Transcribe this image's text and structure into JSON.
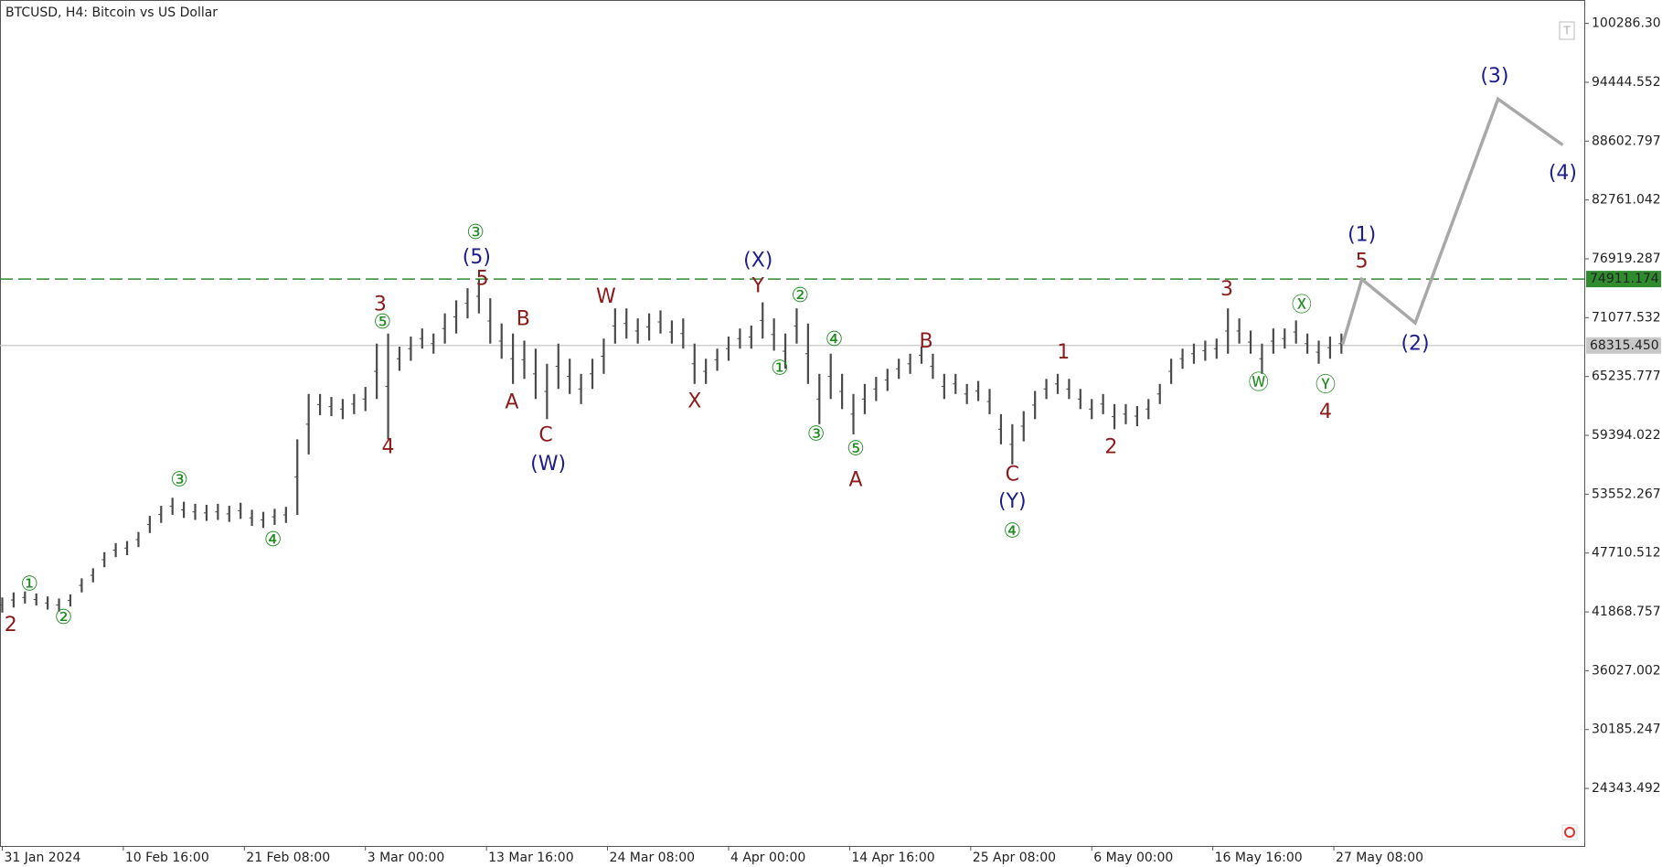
{
  "chart_data": {
    "type": "hilo",
    "title": "BTCUSD, H4:  Bitcoin vs US Dollar",
    "color": "#4a4a4a",
    "x": [
      0,
      1,
      2,
      3,
      4,
      5,
      6,
      7,
      8,
      9,
      10,
      11,
      12,
      13,
      14,
      15,
      16,
      17,
      18,
      19,
      20,
      21,
      22,
      23,
      24,
      25,
      26,
      27,
      28,
      29,
      30,
      31,
      32,
      33,
      34,
      35,
      36,
      37,
      38,
      39,
      40,
      41,
      42,
      43,
      44,
      45,
      46,
      47,
      48,
      49,
      50,
      51,
      52,
      53,
      54,
      55,
      56,
      57,
      58,
      59,
      60,
      61,
      62,
      63,
      64,
      65,
      66,
      67,
      68,
      69,
      70,
      71,
      72,
      73,
      74,
      75,
      76,
      77,
      78,
      79,
      80,
      81,
      82,
      83,
      84,
      85,
      86,
      87,
      88,
      89,
      90,
      91,
      92,
      93,
      94,
      95,
      96,
      97,
      98,
      99,
      100,
      101,
      102,
      103,
      104,
      105,
      106,
      107,
      108,
      109,
      110,
      111,
      112,
      113,
      114,
      115,
      116,
      117,
      118
    ],
    "high": [
      43300,
      43800,
      43900,
      43700,
      43400,
      43200,
      43600,
      45200,
      46200,
      47800,
      48700,
      48900,
      49800,
      51400,
      52400,
      53200,
      52800,
      52600,
      52500,
      52600,
      52400,
      52700,
      52000,
      51800,
      52100,
      52300,
      59000,
      63500,
      63500,
      63200,
      63000,
      63500,
      64200,
      68500,
      69500,
      68200,
      69200,
      70000,
      69500,
      71500,
      72800,
      74000,
      74900,
      73000,
      70500,
      69500,
      68800,
      68000,
      66500,
      68500,
      67000,
      65500,
      67000,
      69000,
      72000,
      72000,
      71000,
      71500,
      71800,
      70800,
      71000,
      68500,
      67000,
      68000,
      69200,
      70000,
      70300,
      72600,
      71000,
      69500,
      72000,
      70500,
      65500,
      67500,
      65500,
      63500,
      64500,
      65200,
      66000,
      67000,
      67500,
      68200,
      67500,
      65500,
      65500,
      64500,
      64800,
      64000,
      61500,
      60500,
      61800,
      63800,
      65000,
      65500,
      65000,
      64000,
      63000,
      63500,
      62500,
      62500,
      62300,
      63000,
      64500,
      67000,
      68000,
      68500,
      68800,
      69000,
      72000,
      71000,
      69800,
      68500,
      70000,
      70000,
      70800,
      69500,
      68800,
      69200,
      69500
    ],
    "low": [
      41800,
      42300,
      42700,
      42500,
      42100,
      41900,
      42400,
      43800,
      44800,
      46300,
      47300,
      47500,
      48300,
      49700,
      50700,
      51500,
      51200,
      51000,
      50900,
      51000,
      50800,
      51100,
      50400,
      50200,
      50500,
      50700,
      51500,
      57500,
      61400,
      61300,
      61000,
      61500,
      61800,
      63000,
      59000,
      65800,
      66800,
      68000,
      67500,
      68500,
      69500,
      71000,
      71500,
      68500,
      67000,
      64500,
      65000,
      63000,
      61000,
      64000,
      63500,
      62500,
      64000,
      65500,
      68500,
      69000,
      68500,
      68800,
      69500,
      68500,
      68000,
      64500,
      64500,
      65800,
      66800,
      68000,
      68000,
      69000,
      67800,
      66000,
      68500,
      64500,
      60500,
      63000,
      62000,
      59500,
      61500,
      62800,
      63800,
      65000,
      65500,
      66500,
      65000,
      63000,
      63500,
      62500,
      62800,
      61500,
      58500,
      56500,
      58800,
      61000,
      63000,
      63500,
      63000,
      62000,
      61000,
      61500,
      60000,
      60500,
      60300,
      61000,
      62500,
      64500,
      66000,
      66500,
      66800,
      67000,
      67500,
      68500,
      67500,
      65500,
      67500,
      68000,
      68500,
      67500,
      66500,
      67000,
      67500
    ],
    "xlim": [
      -0.2,
      139.4
    ],
    "ylim": [
      18630,
      102614
    ],
    "yticks": [
      24343.492,
      30185.247,
      36027.002,
      41868.757,
      47710.512,
      53552.267,
      59394.022,
      65235.777,
      71077.532,
      76919.287,
      82761.042,
      88602.797,
      94444.552,
      100286.307
    ],
    "xticks": [
      {
        "value": 0,
        "label": "31 Jan 2024"
      },
      {
        "value": 10.667,
        "label": "10 Feb 16:00"
      },
      {
        "value": 21.333,
        "label": "21 Feb 08:00"
      },
      {
        "value": 32,
        "label": "3 Mar 00:00"
      },
      {
        "value": 42.667,
        "label": "13 Mar 16:00"
      },
      {
        "value": 53.333,
        "label": "24 Mar 08:00"
      },
      {
        "value": 64,
        "label": "4 Apr 00:00"
      },
      {
        "value": 74.667,
        "label": "14 Apr 16:00"
      },
      {
        "value": 85.333,
        "label": "25 Apr 08:00"
      },
      {
        "value": 96,
        "label": "6 May 00:00"
      },
      {
        "value": 106.667,
        "label": "16 May 16:00"
      },
      {
        "value": 117.333,
        "label": "27 May 08:00"
      }
    ],
    "hlines": [
      {
        "value": 74911.174,
        "label": "74911.174",
        "color": "#2e8b2e",
        "style": "dashed"
      },
      {
        "value": 68315.45,
        "label": "68315.450",
        "color": "#c8c8c8",
        "style": "solid"
      }
    ],
    "projection": {
      "color": "#a8a8a8",
      "x": [
        118.1,
        119.8,
        124.5,
        131.8,
        137.5
      ],
      "y": [
        68440,
        74890,
        70557,
        92774,
        88224
      ]
    },
    "annotations": [
      {
        "text": "2",
        "color": "#8b1a1a",
        "x": 0.75,
        "y": 40510
      },
      {
        "text": "①",
        "color": "#1f8a1f",
        "x": 2.4,
        "y": 44530
      },
      {
        "text": "②",
        "color": "#1f8a1f",
        "x": 5.4,
        "y": 41250
      },
      {
        "text": "③",
        "color": "#1f8a1f",
        "x": 15.6,
        "y": 54900
      },
      {
        "text": "④",
        "color": "#1f8a1f",
        "x": 23.85,
        "y": 48970
      },
      {
        "text": "⑤",
        "color": "#1f8a1f",
        "x": 33.5,
        "y": 70560
      },
      {
        "text": "3",
        "color": "#8b1a1a",
        "x": 33.3,
        "y": 72350
      },
      {
        "text": "4",
        "color": "#8b1a1a",
        "x": 34,
        "y": 58180
      },
      {
        "text": "③",
        "color": "#1f8a1f",
        "x": 41.7,
        "y": 79440
      },
      {
        "text": "(5)",
        "color": "#1c1c8c",
        "x": 41.8,
        "y": 77010
      },
      {
        "text": "5",
        "color": "#8b1a1a",
        "x": 42.3,
        "y": 74890
      },
      {
        "text": "B",
        "color": "#8b1a1a",
        "x": 45.9,
        "y": 70870
      },
      {
        "text": "A",
        "color": "#8b1a1a",
        "x": 44.9,
        "y": 62620
      },
      {
        "text": "C",
        "color": "#8b1a1a",
        "x": 47.9,
        "y": 59340
      },
      {
        "text": "(W)",
        "color": "#1c1c8c",
        "x": 48.1,
        "y": 56480
      },
      {
        "text": "W",
        "color": "#8b1a1a",
        "x": 53.2,
        "y": 73090
      },
      {
        "text": "X",
        "color": "#8b1a1a",
        "x": 61,
        "y": 62730
      },
      {
        "text": "(X)",
        "color": "#1c1c8c",
        "x": 66.6,
        "y": 76690
      },
      {
        "text": "Y",
        "color": "#8b1a1a",
        "x": 66.6,
        "y": 74150
      },
      {
        "text": "②",
        "color": "#1f8a1f",
        "x": 70.3,
        "y": 73200
      },
      {
        "text": "①",
        "color": "#1f8a1f",
        "x": 68.5,
        "y": 65990
      },
      {
        "text": "④",
        "color": "#1f8a1f",
        "x": 73.3,
        "y": 68860
      },
      {
        "text": "③",
        "color": "#1f8a1f",
        "x": 71.7,
        "y": 59450
      },
      {
        "text": "⑤",
        "color": "#1f8a1f",
        "x": 75.2,
        "y": 57970
      },
      {
        "text": "A",
        "color": "#8b1a1a",
        "x": 75.2,
        "y": 54900
      },
      {
        "text": "B",
        "color": "#8b1a1a",
        "x": 81.4,
        "y": 68650
      },
      {
        "text": "C",
        "color": "#8b1a1a",
        "x": 89,
        "y": 55430
      },
      {
        "text": "(Y)",
        "color": "#1c1c8c",
        "x": 89,
        "y": 52780
      },
      {
        "text": "④",
        "color": "#1f8a1f",
        "x": 89,
        "y": 49820
      },
      {
        "text": "1",
        "color": "#8b1a1a",
        "x": 93.5,
        "y": 67590
      },
      {
        "text": "2",
        "color": "#8b1a1a",
        "x": 97.7,
        "y": 58180
      },
      {
        "text": "3",
        "color": "#8b1a1a",
        "x": 107.9,
        "y": 73830
      },
      {
        "text": "Ⓦ",
        "color": "#1f8a1f",
        "x": 110.7,
        "y": 64520
      },
      {
        "text": "Ⓧ",
        "color": "#1f8a1f",
        "x": 114.5,
        "y": 72250
      },
      {
        "text": "Ⓨ",
        "color": "#1f8a1f",
        "x": 116.6,
        "y": 64310
      },
      {
        "text": "4",
        "color": "#8b1a1a",
        "x": 116.6,
        "y": 61670
      },
      {
        "text": "(1)",
        "color": "#1c1c8c",
        "x": 119.8,
        "y": 79230
      },
      {
        "text": "5",
        "color": "#8b1a1a",
        "x": 119.8,
        "y": 76590
      },
      {
        "text": "(2)",
        "color": "#1c1c8c",
        "x": 124.5,
        "y": 68440
      },
      {
        "text": "(3)",
        "color": "#1c1c8c",
        "x": 131.5,
        "y": 94996
      },
      {
        "text": "(4)",
        "color": "#1c1c8c",
        "x": 137.5,
        "y": 85370
      }
    ]
  }
}
